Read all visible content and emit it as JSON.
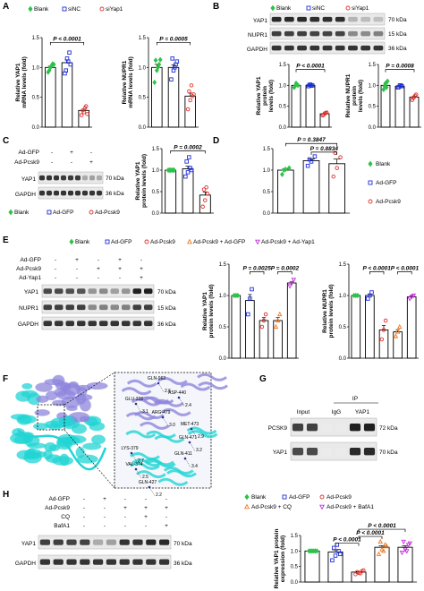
{
  "colors": {
    "green": "#2ec24a",
    "blue": "#1f2fd6",
    "red": "#e0302a",
    "orange": "#f07820",
    "purple": "#c030d8",
    "cyan": "#22d4d4",
    "lav": "#8e86dc"
  },
  "panels": {
    "A": {
      "label": "A",
      "legend": [
        "Blank",
        "siNC",
        "siYap1"
      ],
      "charts": [
        {
          "ylabel": [
            "Relative YAP1",
            "mRNA levels (fold)"
          ],
          "yticks": [
            "0.0",
            "0.5",
            "1.0",
            "1.5"
          ],
          "p": "P < 0.0001"
        },
        {
          "ylabel": [
            "Relative NUPR1",
            "mRNA levels (fold)"
          ],
          "yticks": [
            "0.0",
            "0.5",
            "1.0",
            "1.5"
          ],
          "p": "P = 0.0005"
        }
      ]
    },
    "B": {
      "label": "B",
      "legend": [
        "Blank",
        "siNC",
        "siYap1"
      ],
      "blots": [
        "YAP1",
        "NUPR1",
        "GAPDH"
      ],
      "kda": [
        "70 kDa",
        "15 kDa",
        "36 kDa"
      ],
      "charts": [
        {
          "ylabel": [
            "Relative YAP1",
            "protein",
            "levels (fold)"
          ],
          "yticks": [
            "0.0",
            "0.5",
            "1.0",
            "1.5"
          ],
          "p": "P < 0.0001"
        },
        {
          "ylabel": [
            "Relative NUPR1",
            "protein",
            "levels (fold)"
          ],
          "yticks": [
            "0.0",
            "0.5",
            "1.0",
            "1.5"
          ],
          "p": "P = 0.0008"
        }
      ]
    },
    "C": {
      "label": "C",
      "rows": [
        {
          "name": "Ad-GFP",
          "marks": [
            "-",
            "+",
            "-"
          ]
        },
        {
          "name": "Ad-Pcsk9",
          "marks": [
            "-",
            "-",
            "+"
          ]
        }
      ],
      "blots": [
        "YAP1",
        "GAPDH"
      ],
      "kda": [
        "70 kDa",
        "36 kDa"
      ],
      "legend": [
        "Blank",
        "Ad-GFP",
        "Ad-Pcsk9"
      ],
      "chart": {
        "ylabel": [
          "Relative YAP1",
          "protein levels (fold)"
        ],
        "yticks": [
          "0.0",
          "0.5",
          "1.0",
          "1.5"
        ],
        "p": "P = 0.0002"
      }
    },
    "D": {
      "label": "D",
      "chart": {
        "yticks": [
          "0.0",
          "0.5",
          "1.0",
          "1.5"
        ],
        "p1": "P = 0.3847",
        "p2": "P = 0.8834"
      },
      "legend": [
        "Blank",
        "Ad-GFP",
        "Ad-Pcsk9"
      ]
    },
    "E": {
      "label": "E",
      "legend": [
        "Blank",
        "Ad-GFP",
        "Ad-Pcsk9",
        "Ad-Pcsk9 + Ad-GFP",
        "Ad-Pcsk9 + Ad-Yap1"
      ],
      "rows": [
        {
          "name": "Ad-GFP",
          "marks": [
            "-",
            "+",
            "-",
            "+",
            "-"
          ]
        },
        {
          "name": "Ad-Pcsk9",
          "marks": [
            "-",
            "-",
            "+",
            "+",
            "+"
          ]
        },
        {
          "name": "Ad-Yap1",
          "marks": [
            "-",
            "-",
            "-",
            "-",
            "+"
          ]
        }
      ],
      "blots": [
        "YAP1",
        "NUPR1",
        "GAPDH"
      ],
      "kda": [
        "70 kDa",
        "15 kDa",
        "36 kDa"
      ],
      "charts": [
        {
          "ylabel": [
            "Relative YAP1",
            "protein levels (fold)"
          ],
          "yticks": [
            "0.0",
            "0.5",
            "1.0",
            "1.5"
          ],
          "p1": "P = 0.0025",
          "p2": "P = 0.0002"
        },
        {
          "ylabel": [
            "Relative NUPR1",
            "protein levels (fold)"
          ],
          "yticks": [
            "0.0",
            "0.5",
            "1.0",
            "1.5"
          ],
          "p1": "P < 0.0001",
          "p2": "P < 0.0001"
        }
      ]
    },
    "F": {
      "label": "F",
      "residues": [
        "GLN-962",
        "GLU-326",
        "ASP-440",
        "ARG-479",
        "MET-473",
        "GLN-471",
        "LYS-379",
        "GLN-411",
        "VAL-374",
        "GLN-427"
      ],
      "distances": [
        "2.6",
        "3.1",
        "2.4",
        "3.0",
        "2.9",
        "3.2",
        "2.7",
        "3.4",
        "2.5",
        "2.2"
      ]
    },
    "G": {
      "label": "G",
      "ip": "IP",
      "cols": [
        "Input",
        "IgG",
        "YAP1"
      ],
      "blots": [
        "PCSK9",
        "YAP1"
      ],
      "kda": [
        "72 kDa",
        "70 kDa"
      ]
    },
    "H": {
      "label": "H",
      "legend": [
        "Blank",
        "Ad-GFP",
        "Ad-Pcsk9",
        "Ad-Pcsk9 + CQ",
        "Ad-Pcsk9 + BafA1"
      ],
      "rows": [
        {
          "name": "Ad-GFP",
          "marks": [
            "-",
            "+",
            "-",
            "-",
            "-"
          ]
        },
        {
          "name": "Ad-Pcsk9",
          "marks": [
            "-",
            "-",
            "+",
            "+",
            "+"
          ]
        },
        {
          "name": "CQ",
          "marks": [
            "-",
            "-",
            "-",
            "+",
            "-"
          ]
        },
        {
          "name": "BafA1",
          "marks": [
            "-",
            "-",
            "-",
            "-",
            "+"
          ]
        }
      ],
      "blots": [
        "YAP1",
        "GAPDH"
      ],
      "kda": [
        "70 kDa",
        "36 kDa"
      ],
      "chart": {
        "ylabel": [
          "Relative YAP1 protein",
          "expression (fold)"
        ],
        "yticks": [
          "0.0",
          "0.5",
          "1.0",
          "1.5"
        ],
        "p1": "P < 0.0001",
        "p2": "P < 0.0001",
        "p3": "P < 0.0001"
      }
    }
  },
  "chart_data": [
    {
      "type": "bar",
      "panel": "A1",
      "categories": [
        "Blank",
        "siNC",
        "siYap1"
      ],
      "values": [
        1.0,
        1.08,
        0.28
      ],
      "ylim": [
        0,
        1.5
      ],
      "points": [
        [
          0.92,
          1.0,
          1.06,
          0.95,
          1.03,
          1.05
        ],
        [
          0.9,
          1.15,
          1.25,
          0.95,
          1.1,
          1.05
        ],
        [
          0.2,
          0.25,
          0.35,
          0.28,
          0.32,
          0.22
        ]
      ]
    },
    {
      "type": "bar",
      "panel": "A2",
      "categories": [
        "Blank",
        "siNC",
        "siYap1"
      ],
      "values": [
        1.0,
        1.0,
        0.52
      ],
      "ylim": [
        0,
        1.5
      ],
      "points": [
        [
          0.75,
          0.95,
          1.05,
          1.12,
          1.0,
          1.13
        ],
        [
          0.8,
          0.95,
          1.05,
          1.15,
          1.0,
          1.1
        ],
        [
          0.3,
          0.45,
          0.52,
          0.6,
          0.7,
          0.55
        ]
      ]
    },
    {
      "type": "bar",
      "panel": "B1",
      "categories": [
        "Blank",
        "siNC",
        "siYap1"
      ],
      "values": [
        1.0,
        1.0,
        0.32
      ],
      "ylim": [
        0,
        1.5
      ],
      "points": [
        [
          0.95,
          1.05,
          1.0,
          0.98,
          1.02
        ],
        [
          0.98,
          1.02,
          1.0,
          1.01,
          0.99
        ],
        [
          0.28,
          0.33,
          0.35,
          0.3,
          0.34
        ]
      ]
    },
    {
      "type": "bar",
      "panel": "B2",
      "categories": [
        "Blank",
        "siNC",
        "siYap1"
      ],
      "values": [
        1.0,
        0.98,
        0.72
      ],
      "ylim": [
        0,
        1.5
      ],
      "points": [
        [
          0.9,
          1.05,
          1.1,
          0.98,
          0.95
        ],
        [
          0.95,
          1.0,
          0.98,
          0.96,
          1.0
        ],
        [
          0.65,
          0.72,
          0.78,
          0.7,
          0.75
        ]
      ]
    },
    {
      "type": "bar",
      "panel": "C",
      "categories": [
        "Blank",
        "Ad-GFP",
        "Ad-Pcsk9"
      ],
      "values": [
        1.0,
        1.03,
        0.42
      ],
      "ylim": [
        0,
        1.5
      ],
      "points": [
        [
          1.0,
          1.0,
          1.0,
          1.0,
          1.0,
          1.0
        ],
        [
          0.85,
          0.95,
          1.05,
          1.2,
          1.3,
          1.0
        ],
        [
          0.15,
          0.3,
          0.45,
          0.55,
          0.6
        ]
      ]
    },
    {
      "type": "bar",
      "panel": "D",
      "categories": [
        "Blank",
        "Ad-GFP",
        "Ad-Pcsk9"
      ],
      "values": [
        1.0,
        1.22,
        1.15
      ],
      "ylim": [
        0,
        1.5
      ],
      "points": [
        [
          0.9,
          1.02,
          1.05,
          1.0
        ],
        [
          1.1,
          1.2,
          1.32,
          1.25
        ],
        [
          0.85,
          1.05,
          1.3,
          1.4
        ]
      ]
    },
    {
      "type": "bar",
      "panel": "E1",
      "categories": [
        "Blank",
        "Ad-GFP",
        "Ad-Pcsk9",
        "Ad-Pcsk9 + Ad-GFP",
        "Ad-Pcsk9 + Ad-Yap1"
      ],
      "values": [
        1.0,
        0.92,
        0.6,
        0.6,
        1.2
      ],
      "ylim": [
        0,
        1.5
      ],
      "points": [
        [
          1.0,
          1.0,
          1.0
        ],
        [
          0.7,
          0.95,
          1.1
        ],
        [
          0.5,
          0.6,
          0.7
        ],
        [
          0.5,
          0.6,
          0.7
        ],
        [
          1.15,
          1.2,
          1.25
        ]
      ]
    },
    {
      "type": "bar",
      "panel": "E2",
      "categories": [
        "Blank",
        "Ad-GFP",
        "Ad-Pcsk9",
        "Ad-Pcsk9 + Ad-GFP",
        "Ad-Pcsk9 + Ad-Yap1"
      ],
      "values": [
        1.0,
        1.0,
        0.45,
        0.42,
        0.98
      ],
      "ylim": [
        0,
        1.5
      ],
      "points": [
        [
          1.0,
          1.0,
          1.0
        ],
        [
          0.95,
          1.0,
          1.05
        ],
        [
          0.3,
          0.45,
          0.6
        ],
        [
          0.35,
          0.42,
          0.5
        ],
        [
          0.95,
          0.98,
          1.0
        ]
      ]
    },
    {
      "type": "bar",
      "panel": "H",
      "categories": [
        "Blank",
        "Ad-GFP",
        "Ad-Pcsk9",
        "Ad-Pcsk9 + CQ",
        "Ad-Pcsk9 + BafA1"
      ],
      "values": [
        1.0,
        0.97,
        0.32,
        1.12,
        1.12
      ],
      "ylim": [
        0,
        1.5
      ],
      "points": [
        [
          1.0,
          1.0,
          1.0,
          1.0,
          1.0,
          1.0
        ],
        [
          0.7,
          0.85,
          1.0,
          1.1,
          1.2,
          0.9
        ],
        [
          0.25,
          0.3,
          0.35,
          0.32,
          0.28,
          0.38
        ],
        [
          0.9,
          1.05,
          1.2,
          1.3,
          1.0,
          1.15
        ],
        [
          0.95,
          1.05,
          1.2,
          1.3,
          1.0,
          1.25
        ]
      ]
    }
  ]
}
